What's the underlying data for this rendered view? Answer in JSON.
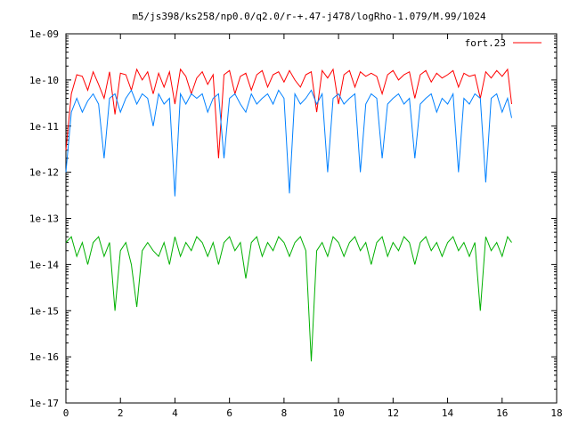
{
  "chart_data": {
    "type": "line",
    "title": "m5/js398/ks258/np0.0/q2.0/r-+.47-j478/logRho-1.079/M.99/1024",
    "xlabel": "",
    "ylabel": "",
    "x_range": [
      0,
      18
    ],
    "y_range": [
      1e-17,
      1e-09
    ],
    "y_scale": "log",
    "grid": false,
    "legend_position": "top-right",
    "x_ticks": [
      "0",
      "2",
      "4",
      "6",
      "8",
      "10",
      "12",
      "14",
      "16",
      "18"
    ],
    "y_ticks": [
      "1e-09",
      "1e-10",
      "1e-11",
      "1e-12",
      "1e-13",
      "1e-14",
      "1e-15",
      "1e-16",
      "1e-17"
    ],
    "x": [
      0.0,
      0.2,
      0.4,
      0.6,
      0.8,
      1.0,
      1.2,
      1.4,
      1.6,
      1.8,
      2.0,
      2.2,
      2.4,
      2.6,
      2.8,
      3.0,
      3.2,
      3.4,
      3.6,
      3.8,
      4.0,
      4.2,
      4.4,
      4.6,
      4.8,
      5.0,
      5.2,
      5.4,
      5.6,
      5.8,
      6.0,
      6.2,
      6.4,
      6.6,
      6.8,
      7.0,
      7.2,
      7.4,
      7.6,
      7.8,
      8.0,
      8.2,
      8.4,
      8.6,
      8.8,
      9.0,
      9.2,
      9.4,
      9.6,
      9.8,
      10.0,
      10.2,
      10.4,
      10.6,
      10.8,
      11.0,
      11.2,
      11.4,
      11.6,
      11.8,
      12.0,
      12.2,
      12.4,
      12.6,
      12.8,
      13.0,
      13.2,
      13.4,
      13.6,
      13.8,
      14.0,
      14.2,
      14.4,
      14.6,
      14.8,
      15.0,
      15.2,
      15.4,
      15.6,
      15.8,
      16.0,
      16.2,
      16.35
    ],
    "series": [
      {
        "name": "fort.23",
        "color": "#ff0000",
        "values": [
          3e-12,
          5e-11,
          1.3e-10,
          1.2e-10,
          6e-11,
          1.5e-10,
          8e-11,
          4e-11,
          1.5e-10,
          1.8e-11,
          1.4e-10,
          1.3e-10,
          6e-11,
          1.7e-10,
          1e-10,
          1.5e-10,
          5e-11,
          1.4e-10,
          7e-11,
          1.5e-10,
          3e-11,
          1.7e-10,
          1.2e-10,
          5e-11,
          1.1e-10,
          1.5e-10,
          8e-11,
          1.3e-10,
          2e-12,
          1.3e-10,
          1.6e-10,
          5e-11,
          1.2e-10,
          1.4e-10,
          6e-11,
          1.3e-10,
          1.6e-10,
          7e-11,
          1.3e-10,
          1.5e-10,
          9e-11,
          1.6e-10,
          1e-10,
          7e-11,
          1.3e-10,
          1.5e-10,
          2e-11,
          1.6e-10,
          1.1e-10,
          1.7e-10,
          3e-11,
          1.3e-10,
          1.6e-10,
          7e-11,
          1.5e-10,
          1.2e-10,
          1.4e-10,
          1.2e-10,
          5e-11,
          1.3e-10,
          1.6e-10,
          1e-10,
          1.3e-10,
          1.5e-10,
          4e-11,
          1.3e-10,
          1.6e-10,
          9e-11,
          1.4e-10,
          1.1e-10,
          1.3e-10,
          1.6e-10,
          7e-11,
          1.4e-10,
          1.2e-10,
          1.3e-10,
          4e-11,
          1.5e-10,
          1.1e-10,
          1.6e-10,
          1.2e-10,
          1.7e-10,
          3e-11
        ]
      },
      {
        "color": "#0080ff",
        "values": [
          1e-12,
          2e-11,
          4e-11,
          2e-11,
          3.5e-11,
          5e-11,
          3e-11,
          2e-12,
          4e-11,
          5e-11,
          2e-11,
          4e-11,
          6e-11,
          3e-11,
          5e-11,
          4e-11,
          1e-11,
          5e-11,
          3e-11,
          4e-11,
          3e-13,
          5e-11,
          3e-11,
          5e-11,
          4e-11,
          5e-11,
          2e-11,
          4e-11,
          5e-11,
          2e-12,
          4e-11,
          5e-11,
          3e-11,
          2e-11,
          5e-11,
          3e-11,
          4e-11,
          5e-11,
          3e-11,
          6e-11,
          4e-11,
          3.5e-13,
          5e-11,
          3e-11,
          4e-11,
          6e-11,
          3e-11,
          5e-11,
          1e-12,
          4e-11,
          5e-11,
          3e-11,
          4e-11,
          5e-11,
          1e-12,
          3e-11,
          5e-11,
          4e-11,
          2e-12,
          3e-11,
          4e-11,
          5e-11,
          3e-11,
          4e-11,
          2e-12,
          3e-11,
          4e-11,
          5e-11,
          2e-11,
          4e-11,
          3e-11,
          5e-11,
          1e-12,
          4e-11,
          3e-11,
          5e-11,
          4e-11,
          6e-13,
          4e-11,
          5e-11,
          2e-11,
          4e-11,
          1.5e-11
        ]
      },
      {
        "color": "#00b000",
        "values": [
          3e-14,
          4e-14,
          1.5e-14,
          3e-14,
          1e-14,
          3e-14,
          4e-14,
          1.5e-14,
          3e-14,
          1e-15,
          2e-14,
          3e-14,
          1e-14,
          1.2e-15,
          2e-14,
          3e-14,
          2e-14,
          1.5e-14,
          3e-14,
          1e-14,
          4e-14,
          1.5e-14,
          3e-14,
          2e-14,
          4e-14,
          3e-14,
          1.5e-14,
          3e-14,
          1e-14,
          3e-14,
          4e-14,
          2e-14,
          3e-14,
          5e-15,
          3e-14,
          4e-14,
          1.5e-14,
          3e-14,
          2e-14,
          4e-14,
          3e-14,
          1.5e-14,
          3e-14,
          4e-14,
          2e-14,
          8e-17,
          2e-14,
          3e-14,
          1.5e-14,
          4e-14,
          3e-14,
          1.5e-14,
          3e-14,
          4e-14,
          2e-14,
          3e-14,
          1e-14,
          3e-14,
          4e-14,
          1.5e-14,
          3e-14,
          2e-14,
          4e-14,
          3e-14,
          1e-14,
          3e-14,
          4e-14,
          2e-14,
          3e-14,
          1.5e-14,
          3e-14,
          4e-14,
          2e-14,
          3e-14,
          1.5e-14,
          3e-14,
          1e-15,
          4e-14,
          2e-14,
          3e-14,
          1.5e-14,
          4e-14,
          3e-14
        ]
      }
    ]
  }
}
